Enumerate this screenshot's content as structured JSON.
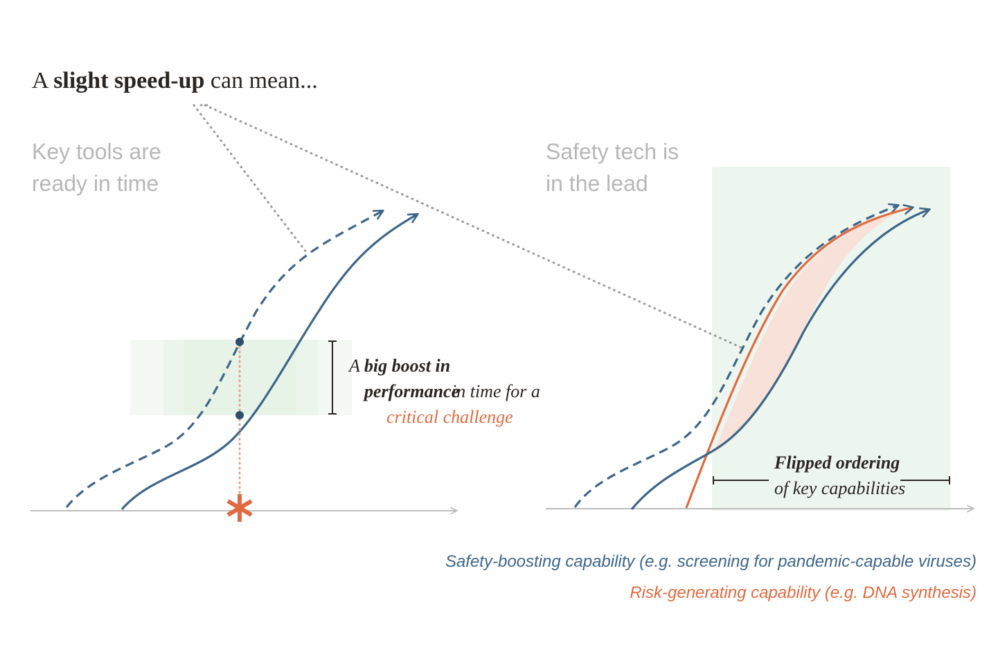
{
  "headline": {
    "prefix": "A",
    "bold": "slight speed-up",
    "suffix": "can mean..."
  },
  "left_panel": {
    "title_line1": "Key tools are",
    "title_line2": "ready in time",
    "annotation": {
      "part1": "A",
      "bold": "big boost in performance",
      "part2": "in time for a",
      "risk_phrase": "critical challenge"
    }
  },
  "right_panel": {
    "title_line1": "Safety tech is",
    "title_line2": "in the lead",
    "annotation": {
      "bold": "Flipped ordering",
      "sub": "of key capabilities"
    }
  },
  "legend": {
    "safety": "Safety-boosting capability (e.g. screening for pandemic-capable viruses)",
    "risk": "Risk-generating capability (e.g. DNA synthesis)"
  },
  "colors": {
    "safety": "#3d6688",
    "risk": "#e06a40",
    "highlight": "#e6f2e6",
    "title_gray": "#b7b7b7",
    "axis": "#bdbdbd"
  }
}
